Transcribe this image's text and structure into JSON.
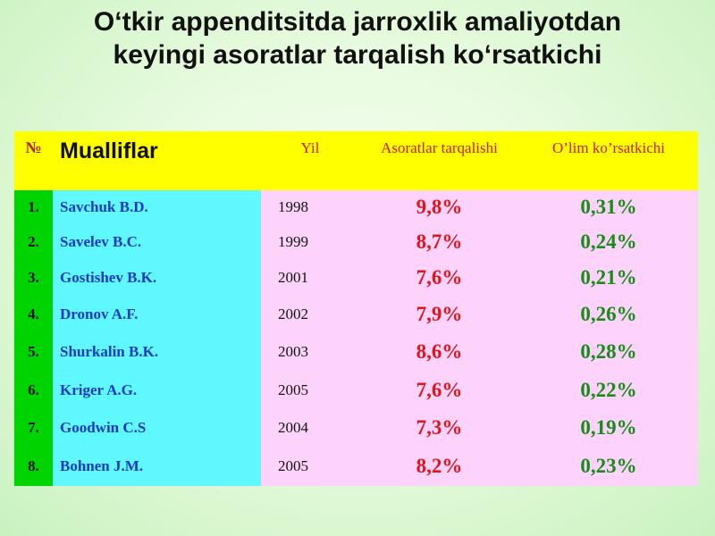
{
  "title": {
    "line1": "O‘tkir appenditsitda jarroxlik amaliyotdan",
    "line2": "keyingi asoratlar tarqalish ko‘rsatkichi"
  },
  "table": {
    "headers": {
      "num": "№",
      "authors": "Mualliflar",
      "year": "Yil",
      "complications": "Asoratlar tarqalishi",
      "mortality": "O’lim ko’rsatkichi"
    },
    "rows": [
      {
        "num": "1.",
        "author": "Savchuk B.D.",
        "year": "1998",
        "complications": "9,8%",
        "mortality": "0,31%"
      },
      {
        "num": "2.",
        "author": "Savelev B.C.",
        "year": "1999",
        "complications": "8,7%",
        "mortality": "0,24%"
      },
      {
        "num": "3.",
        "author": "Gostishev B.K.",
        "year": "2001",
        "complications": "7,6%",
        "mortality": "0,21%"
      },
      {
        "num": "4.",
        "author": "Dronov A.F.",
        "year": "2002",
        "complications": "7,9%",
        "mortality": "0,26%"
      },
      {
        "num": "5.",
        "author": "Shurkalin B.K.",
        "year": "2003",
        "complications": "8,6%",
        "mortality": "0,28%"
      },
      {
        "num": "6.",
        "author": "Kriger A.G.",
        "year": "2005",
        "complications": "7,6%",
        "mortality": "0,22%"
      },
      {
        "num": "7.",
        "author": "Goodwin C.S",
        "year": "2004",
        "complications": "7,3%",
        "mortality": "0,19%"
      },
      {
        "num": "8.",
        "author": "Bohnen J.M.",
        "year": "2005",
        "complications": "8,2%",
        "mortality": "0,23%"
      }
    ]
  }
}
